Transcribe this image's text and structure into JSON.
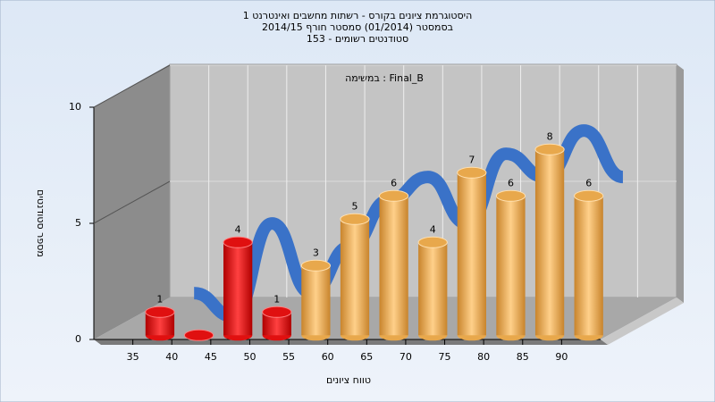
{
  "chart_data": {
    "type": "histogram",
    "title_lines": [
      "היסטוגרמת ציונים בקורס - רשתות מחשבים ואינטרנט 1",
      "בסמסטר  (01/2014)  סמסטר חורף 2014/15",
      "סטודנטים רשומים - 153"
    ],
    "subtitle": "במשימה : Final_B",
    "x_label": "טווח ציונים",
    "y_label": "מספר סטודנטים",
    "bins": [
      35,
      40,
      45,
      50,
      55,
      60,
      65,
      70,
      75,
      80,
      85,
      90,
      95
    ],
    "values": [
      1,
      0,
      4,
      1,
      3,
      5,
      6,
      4,
      7,
      6,
      8,
      6
    ],
    "colors": [
      "#e01010",
      "#e01010",
      "#e01010",
      "#e01010",
      "#e8a84c",
      "#e8a84c",
      "#e8a84c",
      "#e8a84c",
      "#e8a84c",
      "#e8a84c",
      "#e8a84c",
      "#e8a84c"
    ],
    "curve_color": "#3a72c8",
    "xlim": [
      30,
      95
    ],
    "xticks": [
      35,
      40,
      45,
      50,
      55,
      60,
      65,
      70,
      75,
      80,
      85,
      90
    ],
    "ylim": [
      0,
      10
    ],
    "yticks": [
      0,
      5,
      10
    ],
    "grid": true
  }
}
